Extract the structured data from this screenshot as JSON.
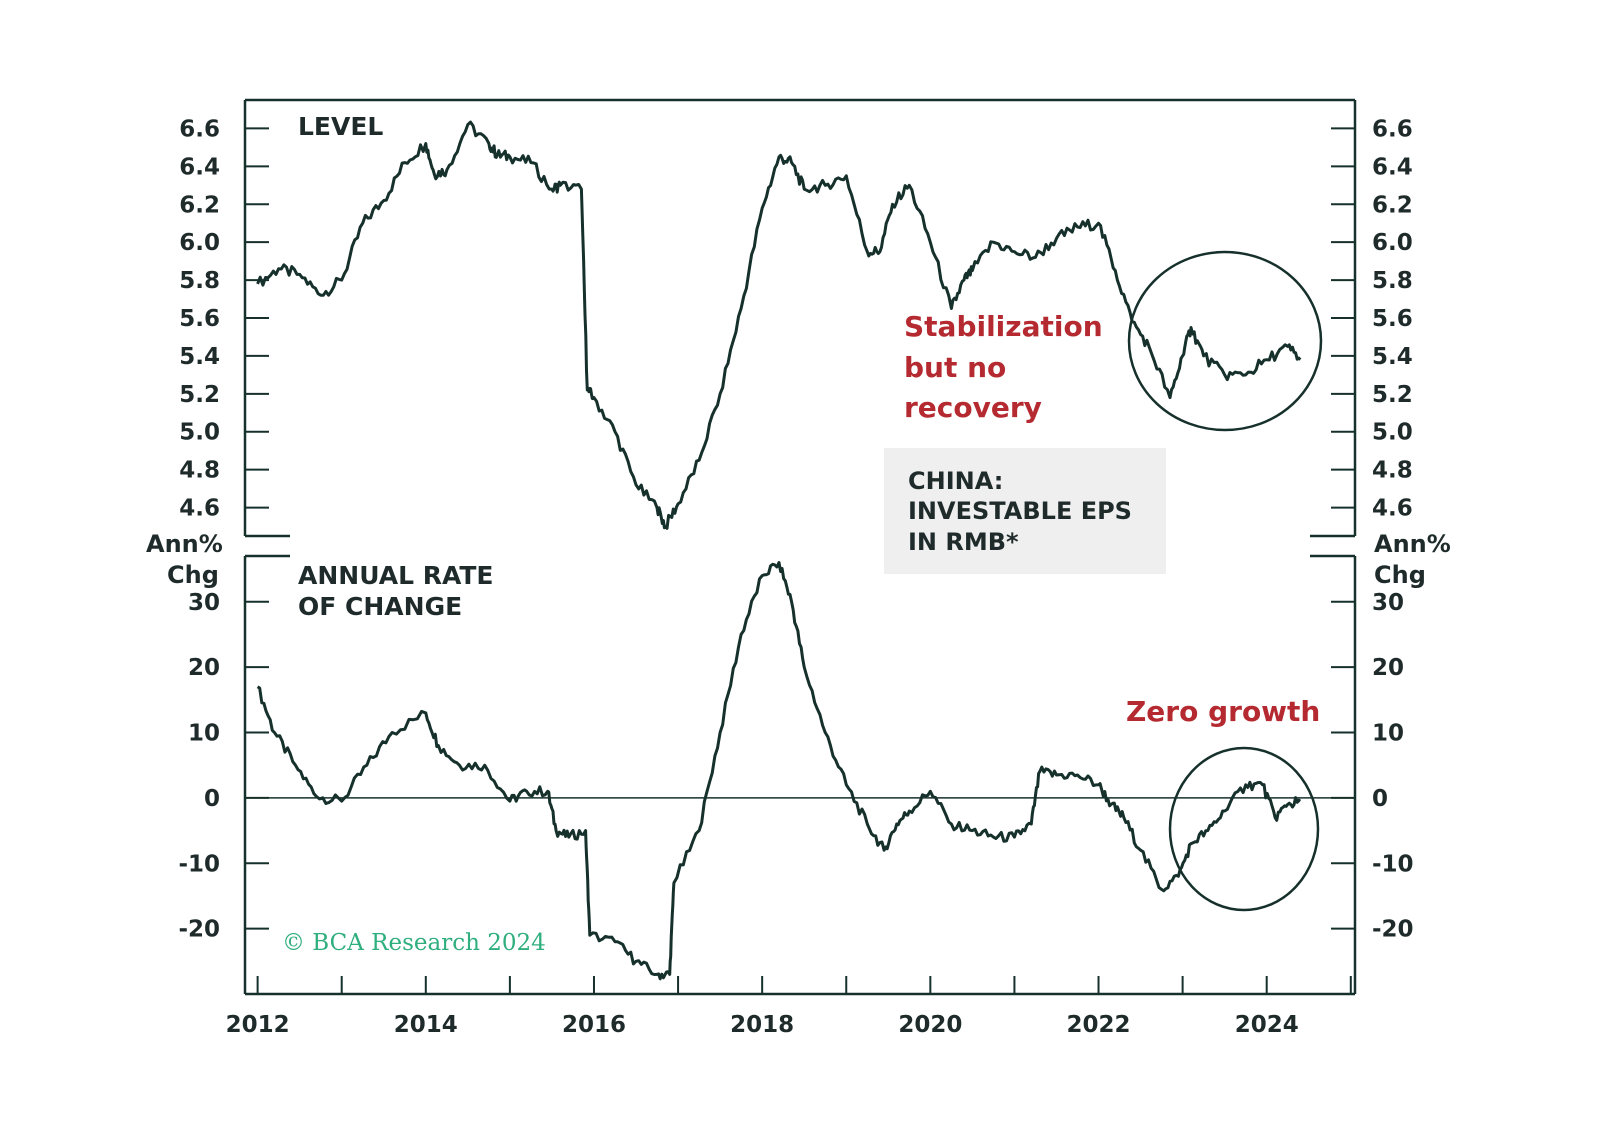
{
  "chart_data": [
    {
      "type": "line",
      "title": "LEVEL",
      "panel": "top",
      "ylim": [
        4.45,
        6.75
      ],
      "y_ticks": [
        "6.6",
        "6.4",
        "6.2",
        "6.0",
        "5.8",
        "5.6",
        "5.4",
        "5.2",
        "5.0",
        "4.8",
        "4.6"
      ],
      "series": [
        {
          "name": "CHINA: INVESTABLE EPS IN RMB*",
          "x": [
            2012.0,
            2012.25,
            2012.5,
            2012.75,
            2013.0,
            2013.25,
            2013.5,
            2013.75,
            2014.0,
            2014.1,
            2014.25,
            2014.5,
            2014.75,
            2014.85,
            2015.0,
            2015.25,
            2015.5,
            2015.6,
            2015.85,
            2015.92,
            2016.0,
            2016.25,
            2016.5,
            2016.75,
            2016.85,
            2017.0,
            2017.25,
            2017.5,
            2017.75,
            2018.0,
            2018.2,
            2018.35,
            2018.5,
            2018.75,
            2019.0,
            2019.25,
            2019.4,
            2019.55,
            2019.75,
            2020.0,
            2020.25,
            2020.4,
            2020.5,
            2020.75,
            2021.0,
            2021.25,
            2021.5,
            2021.75,
            2022.0,
            2022.2,
            2022.4,
            2022.6,
            2022.85,
            2023.0,
            2023.1,
            2023.25,
            2023.5,
            2023.75,
            2024.0,
            2024.25,
            2024.4
          ],
          "values": [
            5.78,
            5.86,
            5.83,
            5.72,
            5.8,
            6.1,
            6.22,
            6.42,
            6.52,
            6.36,
            6.38,
            6.62,
            6.52,
            6.46,
            6.45,
            6.42,
            6.28,
            6.3,
            6.28,
            5.22,
            5.18,
            5.0,
            4.72,
            4.6,
            4.5,
            4.62,
            4.85,
            5.2,
            5.65,
            6.18,
            6.45,
            6.42,
            6.28,
            6.3,
            6.35,
            5.95,
            5.95,
            6.2,
            6.3,
            6.0,
            5.65,
            5.8,
            5.85,
            6.0,
            5.95,
            5.92,
            6.02,
            6.08,
            6.1,
            5.85,
            5.58,
            5.45,
            5.18,
            5.4,
            5.55,
            5.4,
            5.3,
            5.3,
            5.38,
            5.45,
            5.38
          ]
        }
      ],
      "annotations": [
        "Stabilization",
        "but no",
        "recovery"
      ]
    },
    {
      "type": "line",
      "title": "ANNUAL RATE OF CHANGE",
      "panel": "bottom",
      "ylabel": "Ann% Chg",
      "ylim": [
        -30,
        37
      ],
      "y_ticks": [
        "30",
        "20",
        "10",
        "0",
        "-10",
        "-20"
      ],
      "series": [
        {
          "name": "Annual rate of change",
          "x": [
            2012.0,
            2012.2,
            2012.45,
            2012.7,
            2013.0,
            2013.3,
            2013.6,
            2014.0,
            2014.15,
            2014.4,
            2014.7,
            2015.0,
            2015.2,
            2015.45,
            2015.55,
            2015.7,
            2015.9,
            2015.95,
            2016.25,
            2016.5,
            2016.75,
            2016.9,
            2016.95,
            2017.25,
            2017.5,
            2017.75,
            2018.0,
            2018.2,
            2018.35,
            2018.5,
            2018.75,
            2019.0,
            2019.25,
            2019.45,
            2019.6,
            2019.75,
            2020.0,
            2020.25,
            2020.5,
            2020.75,
            2021.0,
            2021.2,
            2021.3,
            2021.5,
            2021.75,
            2022.0,
            2022.15,
            2022.3,
            2022.5,
            2022.75,
            2022.95,
            2023.1,
            2023.3,
            2023.5,
            2023.75,
            2023.95,
            2024.1,
            2024.25,
            2024.4
          ],
          "values": [
            17,
            10,
            5,
            0.2,
            -0.5,
            5,
            10,
            13,
            8,
            5,
            5,
            -0.5,
            1,
            1,
            -5,
            -6,
            -5,
            -21,
            -22,
            -25,
            -27,
            -27,
            -13,
            -5,
            10,
            25,
            34,
            36,
            30,
            20,
            10,
            2,
            -4,
            -8,
            -4,
            -2,
            1,
            -4,
            -5,
            -6,
            -6,
            -4,
            4,
            3.5,
            3.5,
            2,
            -1,
            -3,
            -8,
            -14,
            -12,
            -7,
            -5,
            -2,
            2,
            2,
            -3,
            -1,
            -0.5
          ]
        }
      ],
      "annotations": [
        "Zero growth"
      ]
    }
  ],
  "x_ticks": [
    "2012",
    "2014",
    "2016",
    "2018",
    "2020",
    "2022",
    "2024"
  ],
  "unit_label_top_line": "Ann%",
  "unit_label_bottom_line": "Chg",
  "legend": {
    "line1": "CHINA:",
    "line2": "INVESTABLE EPS",
    "line3": "IN RMB*"
  },
  "copyright": "© BCA Research 2024",
  "colors": {
    "series": "#16302b",
    "annotation": "#b52a30",
    "copyright": "#2fae7e",
    "legend_bg": "#efefef"
  }
}
